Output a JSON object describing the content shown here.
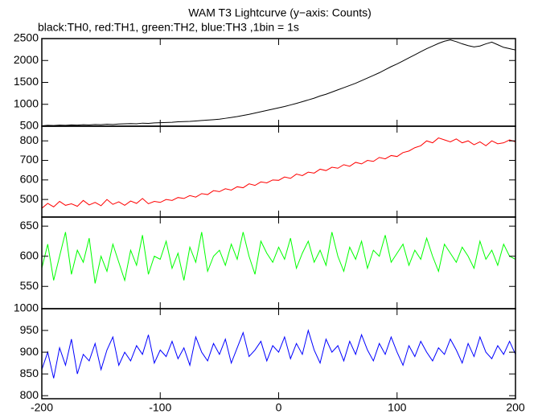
{
  "chart_data": [
    {
      "type": "line",
      "title": "WAM T3 Lightcurve (y−axis: Counts)",
      "subtitle": "black:TH0, red:TH1, green:TH2, blue:TH3 ,1bin = 1s",
      "x": [
        -200,
        -195,
        -190,
        -185,
        -180,
        -175,
        -170,
        -165,
        -160,
        -155,
        -150,
        -145,
        -140,
        -135,
        -130,
        -125,
        -120,
        -115,
        -110,
        -105,
        -100,
        -95,
        -90,
        -85,
        -80,
        -75,
        -70,
        -65,
        -60,
        -55,
        -50,
        -45,
        -40,
        -35,
        -30,
        -25,
        -20,
        -15,
        -10,
        -5,
        0,
        5,
        10,
        15,
        20,
        25,
        30,
        35,
        40,
        45,
        50,
        55,
        60,
        65,
        70,
        75,
        80,
        85,
        90,
        95,
        100,
        105,
        110,
        115,
        120,
        125,
        130,
        135,
        140,
        145,
        150,
        155,
        160,
        165,
        170,
        175,
        180,
        185,
        190,
        195,
        200
      ],
      "series": [
        {
          "name": "TH0",
          "color": "#000000",
          "values": [
            510,
            520,
            515,
            525,
            520,
            530,
            525,
            535,
            530,
            540,
            535,
            545,
            540,
            550,
            555,
            560,
            555,
            570,
            565,
            575,
            580,
            585,
            590,
            600,
            605,
            610,
            620,
            630,
            640,
            650,
            660,
            680,
            700,
            720,
            745,
            770,
            800,
            830,
            860,
            890,
            920,
            950,
            985,
            1020,
            1060,
            1100,
            1140,
            1190,
            1230,
            1280,
            1330,
            1380,
            1430,
            1480,
            1540,
            1600,
            1660,
            1720,
            1790,
            1860,
            1920,
            1990,
            2060,
            2130,
            2200,
            2270,
            2330,
            2390,
            2440,
            2470,
            2430,
            2380,
            2340,
            2310,
            2330,
            2380,
            2420,
            2360,
            2300,
            2270,
            2240
          ]
        }
      ],
      "xlim": [
        -200,
        200
      ],
      "ylim": [
        500,
        2500
      ],
      "yticks": [
        500,
        1000,
        1500,
        2000,
        2500
      ]
    },
    {
      "type": "line",
      "x": [
        -200,
        -195,
        -190,
        -185,
        -180,
        -175,
        -170,
        -165,
        -160,
        -155,
        -150,
        -145,
        -140,
        -135,
        -130,
        -125,
        -120,
        -115,
        -110,
        -105,
        -100,
        -95,
        -90,
        -85,
        -80,
        -75,
        -70,
        -65,
        -60,
        -55,
        -50,
        -45,
        -40,
        -35,
        -30,
        -25,
        -20,
        -15,
        -10,
        -5,
        0,
        5,
        10,
        15,
        20,
        25,
        30,
        35,
        40,
        45,
        50,
        55,
        60,
        65,
        70,
        75,
        80,
        85,
        90,
        95,
        100,
        105,
        110,
        115,
        120,
        125,
        130,
        135,
        140,
        145,
        150,
        155,
        160,
        165,
        170,
        175,
        180,
        185,
        190,
        195,
        200
      ],
      "series": [
        {
          "name": "TH1",
          "color": "#ff0000",
          "values": [
            455,
            480,
            462,
            490,
            470,
            478,
            465,
            495,
            472,
            485,
            468,
            500,
            475,
            488,
            470,
            492,
            480,
            505,
            478,
            490,
            485,
            500,
            495,
            510,
            505,
            520,
            512,
            530,
            525,
            545,
            540,
            555,
            548,
            565,
            560,
            580,
            572,
            590,
            585,
            600,
            598,
            615,
            608,
            630,
            622,
            640,
            635,
            655,
            648,
            665,
            660,
            678,
            670,
            690,
            682,
            700,
            695,
            715,
            708,
            725,
            720,
            740,
            748,
            765,
            775,
            800,
            790,
            815,
            805,
            795,
            810,
            790,
            800,
            780,
            795,
            775,
            800,
            785,
            790,
            805,
            795
          ]
        }
      ],
      "xlim": [
        -200,
        200
      ],
      "ylim": [
        410,
        875
      ],
      "yticks": [
        500,
        600,
        700,
        800
      ]
    },
    {
      "type": "line",
      "x": [
        -200,
        -195,
        -190,
        -185,
        -180,
        -175,
        -170,
        -165,
        -160,
        -155,
        -150,
        -145,
        -140,
        -135,
        -130,
        -125,
        -120,
        -115,
        -110,
        -105,
        -100,
        -95,
        -90,
        -85,
        -80,
        -75,
        -70,
        -65,
        -60,
        -55,
        -50,
        -45,
        -40,
        -35,
        -30,
        -25,
        -20,
        -15,
        -10,
        -5,
        0,
        5,
        10,
        15,
        20,
        25,
        30,
        35,
        40,
        45,
        50,
        55,
        60,
        65,
        70,
        75,
        80,
        85,
        90,
        95,
        100,
        105,
        110,
        115,
        120,
        125,
        130,
        135,
        140,
        145,
        150,
        155,
        160,
        165,
        170,
        175,
        180,
        185,
        190,
        195,
        200
      ],
      "series": [
        {
          "name": "TH2",
          "color": "#00ff00",
          "values": [
            580,
            620,
            560,
            600,
            640,
            570,
            610,
            590,
            630,
            555,
            600,
            575,
            620,
            590,
            560,
            610,
            585,
            635,
            570,
            600,
            595,
            625,
            580,
            605,
            560,
            615,
            590,
            640,
            575,
            600,
            610,
            585,
            620,
            595,
            640,
            600,
            570,
            625,
            605,
            590,
            615,
            595,
            630,
            580,
            605,
            625,
            590,
            610,
            585,
            640,
            600,
            575,
            615,
            595,
            625,
            580,
            610,
            600,
            635,
            590,
            605,
            620,
            585,
            610,
            595,
            630,
            600,
            575,
            620,
            605,
            590,
            615,
            600,
            580,
            625,
            595,
            610,
            585,
            620,
            600,
            595
          ]
        }
      ],
      "xlim": [
        -200,
        200
      ],
      "ylim": [
        513,
        665
      ],
      "yticks": [
        550,
        600,
        650
      ]
    },
    {
      "type": "line",
      "x": [
        -200,
        -195,
        -190,
        -185,
        -180,
        -175,
        -170,
        -165,
        -160,
        -155,
        -150,
        -145,
        -140,
        -135,
        -130,
        -125,
        -120,
        -115,
        -110,
        -105,
        -100,
        -95,
        -90,
        -85,
        -80,
        -75,
        -70,
        -65,
        -60,
        -55,
        -50,
        -45,
        -40,
        -35,
        -30,
        -25,
        -20,
        -15,
        -10,
        -5,
        0,
        5,
        10,
        15,
        20,
        25,
        30,
        35,
        40,
        45,
        50,
        55,
        60,
        65,
        70,
        75,
        80,
        85,
        90,
        95,
        100,
        105,
        110,
        115,
        120,
        125,
        130,
        135,
        140,
        145,
        150,
        155,
        160,
        165,
        170,
        175,
        180,
        185,
        190,
        195,
        200
      ],
      "series": [
        {
          "name": "TH3",
          "color": "#0000ff",
          "values": [
            860,
            900,
            840,
            910,
            870,
            930,
            850,
            895,
            880,
            920,
            860,
            905,
            935,
            870,
            900,
            880,
            915,
            895,
            940,
            875,
            905,
            890,
            925,
            885,
            910,
            870,
            935,
            900,
            880,
            920,
            895,
            930,
            875,
            910,
            945,
            890,
            905,
            925,
            880,
            915,
            900,
            935,
            885,
            920,
            895,
            950,
            905,
            875,
            930,
            900,
            915,
            880,
            925,
            895,
            940,
            905,
            880,
            920,
            895,
            935,
            900,
            870,
            915,
            890,
            925,
            900,
            880,
            910,
            895,
            930,
            905,
            875,
            920,
            890,
            935,
            900,
            885,
            915,
            895,
            925,
            895
          ]
        }
      ],
      "xlim": [
        -200,
        200
      ],
      "ylim": [
        793,
        1000
      ],
      "yticks": [
        800,
        850,
        900,
        950,
        1000
      ],
      "xticks": [
        -200,
        -100,
        0,
        100,
        200
      ]
    }
  ]
}
